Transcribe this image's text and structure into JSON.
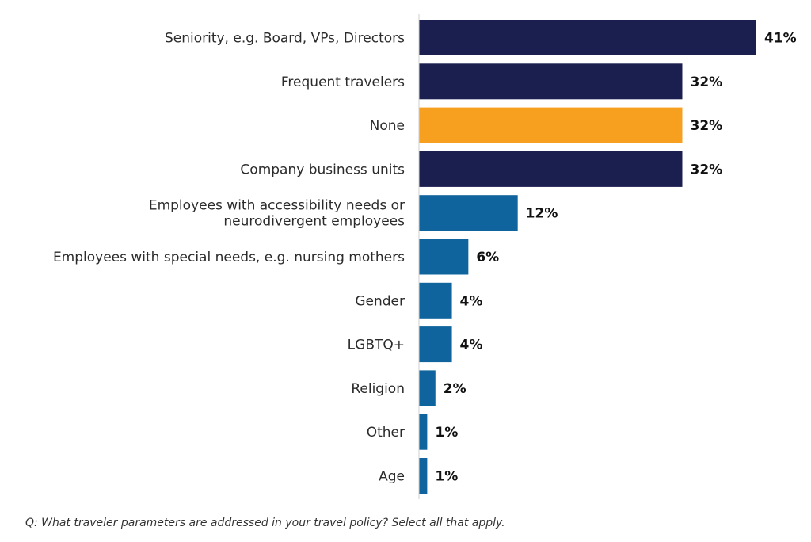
{
  "chart_data": {
    "type": "bar",
    "orientation": "horizontal",
    "categories": [
      [
        "Seniority, e.g. Board, VPs, Directors"
      ],
      [
        "Frequent travelers"
      ],
      [
        "None"
      ],
      [
        "Company business units"
      ],
      [
        "Employees with accessibility needs or",
        "neurodivergent employees"
      ],
      [
        "Employees with special needs, e.g. nursing mothers"
      ],
      [
        "Gender"
      ],
      [
        "LGBTQ+"
      ],
      [
        "Religion"
      ],
      [
        "Other"
      ],
      [
        "Age"
      ]
    ],
    "values": [
      41,
      32,
      32,
      32,
      12,
      6,
      4,
      4,
      2,
      1,
      1
    ],
    "value_labels": [
      "41%",
      "32%",
      "32%",
      "32%",
      "12%",
      "6%",
      "4%",
      "4%",
      "2%",
      "1%",
      "1%"
    ],
    "colors": [
      "#1b1f4f",
      "#1b1f4f",
      "#f7a01f",
      "#1b1f4f",
      "#10649d",
      "#10649d",
      "#10649d",
      "#10649d",
      "#10649d",
      "#10649d",
      "#10649d"
    ],
    "xlim": [
      0,
      41
    ],
    "grid": false,
    "legend": "none"
  },
  "footnote": "Q: What traveler parameters are addressed in your travel policy? Select all that apply."
}
